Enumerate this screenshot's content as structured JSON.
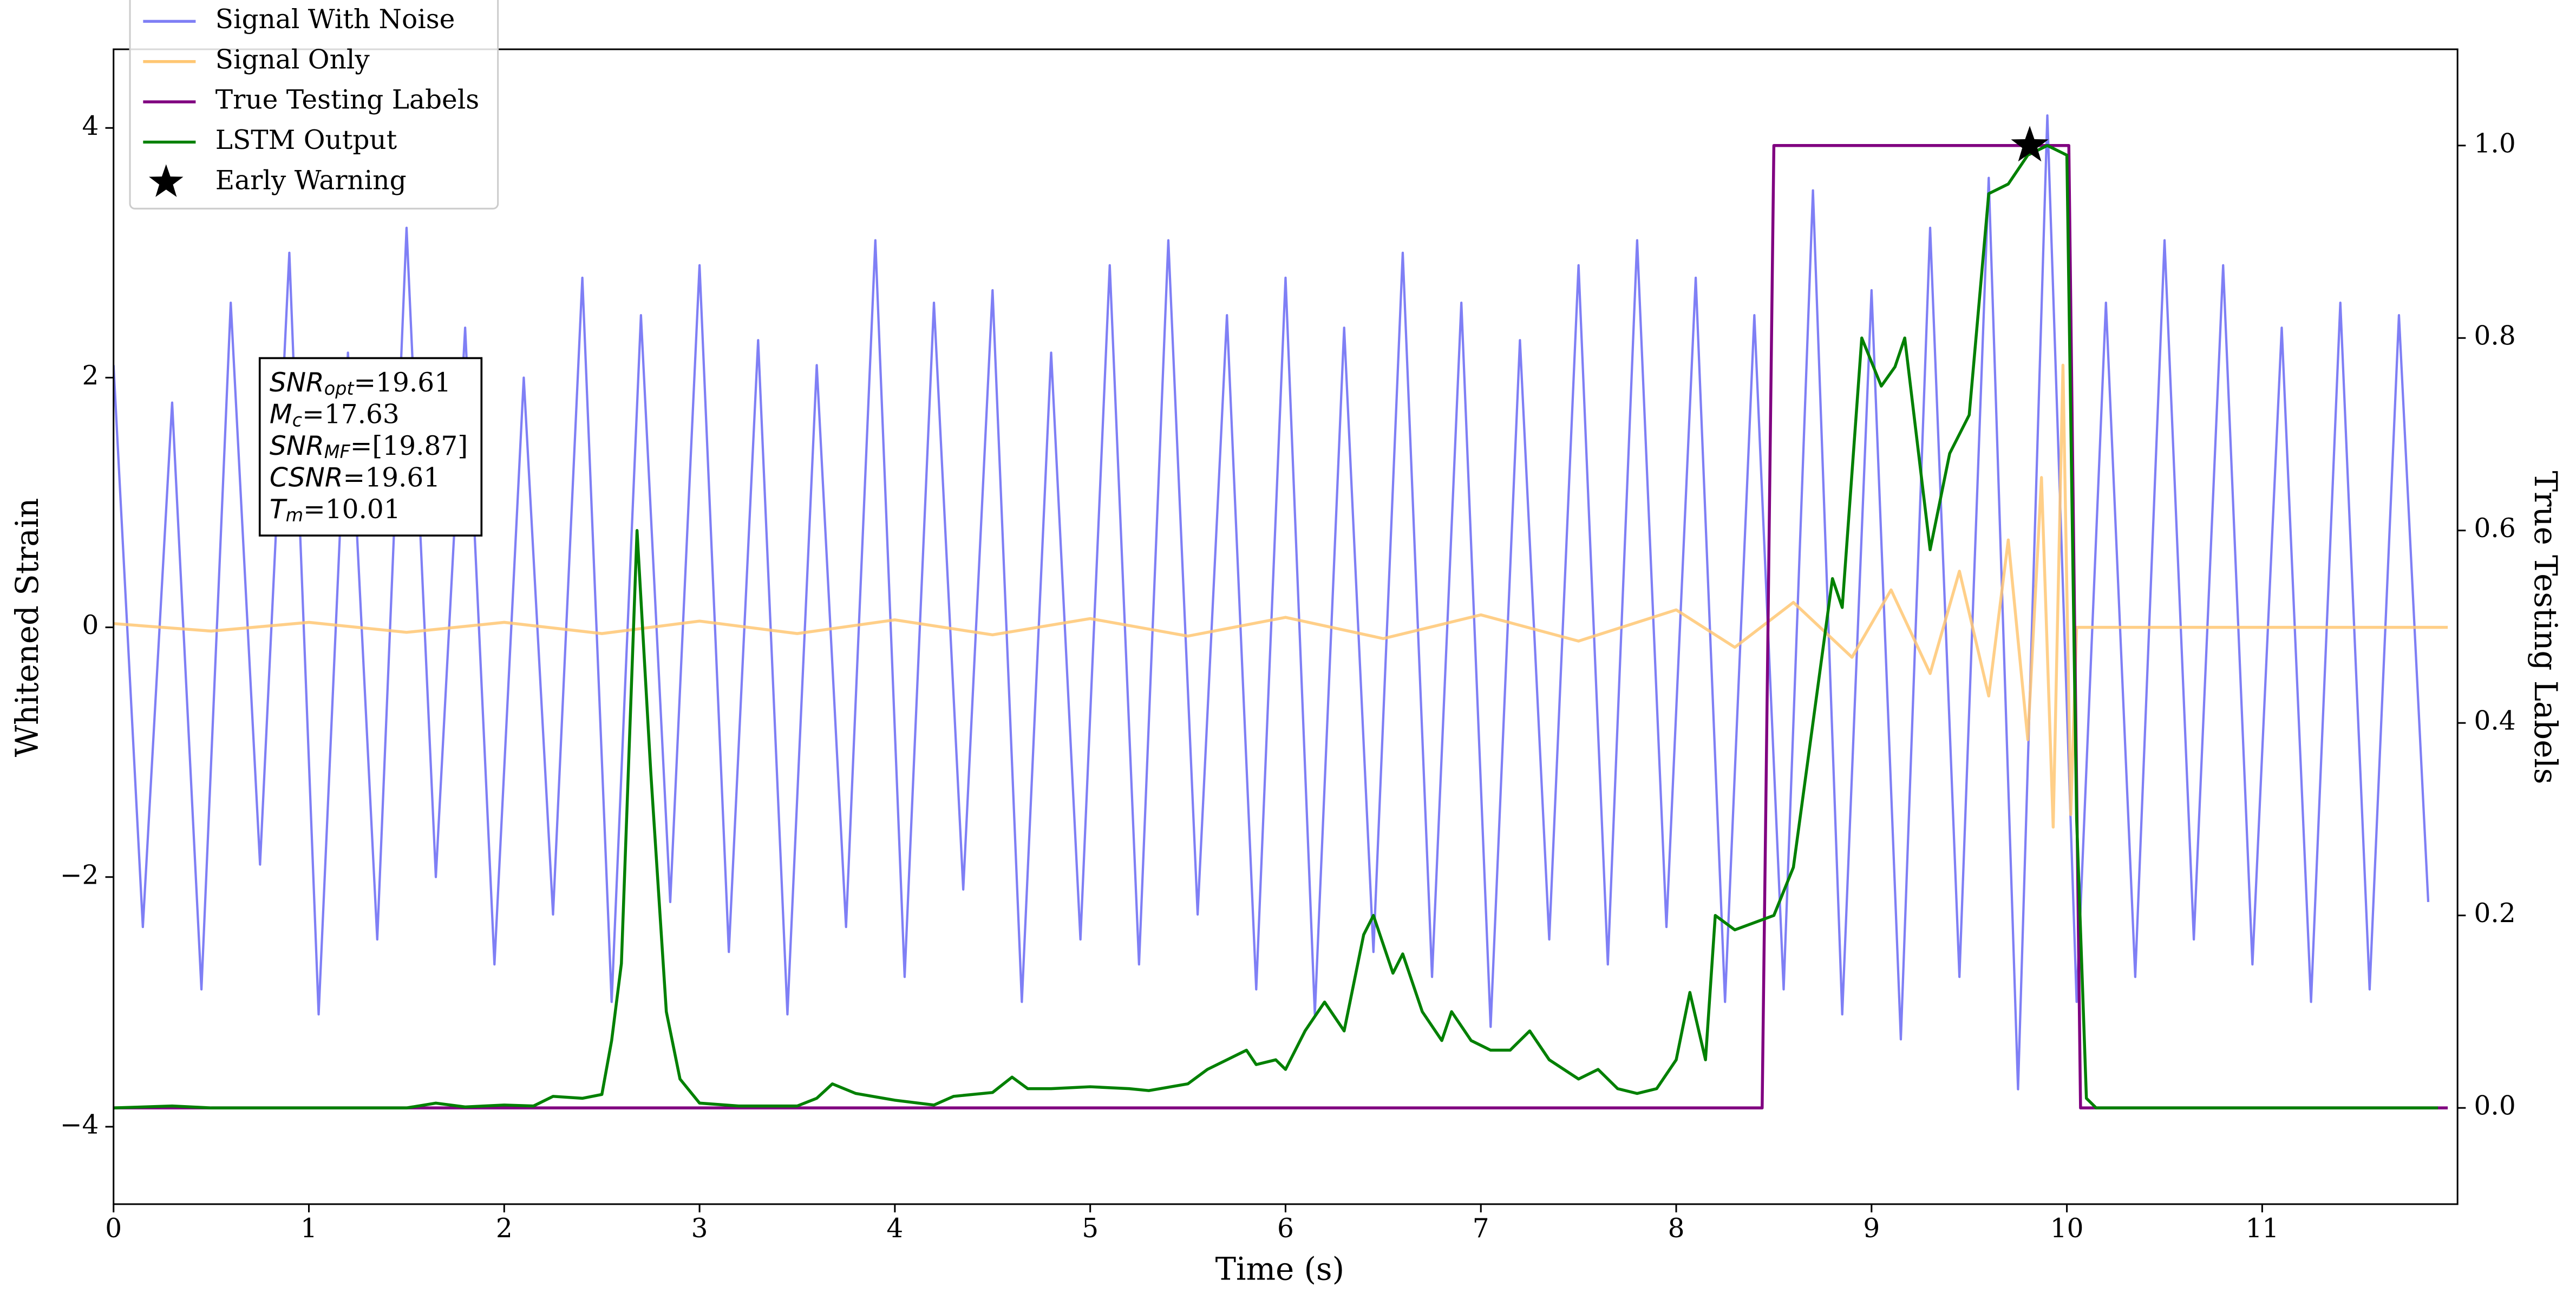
{
  "chart_data": {
    "type": "line",
    "xlabel": "Time (s)",
    "ylabel": "Whitened Strain",
    "y2label": "True Testing Labels",
    "xlim": [
      0,
      12
    ],
    "xticks": [
      0,
      1,
      2,
      3,
      4,
      5,
      6,
      7,
      8,
      9,
      10,
      11
    ],
    "ylim": [
      -4.62,
      4.63
    ],
    "yticks": [
      {
        "value": -4,
        "label": "−4"
      },
      {
        "value": -2,
        "label": "−2"
      },
      0,
      2,
      4
    ],
    "y2lim": [
      -0.1,
      1.1
    ],
    "y2ticks": [
      {
        "value": 0,
        "label": "0.0"
      },
      0.2,
      0.4,
      0.6,
      0.8,
      {
        "value": 1,
        "label": "1.0"
      }
    ],
    "legend": "upper left",
    "series": [
      {
        "name": "Signal With Noise",
        "color": "#7f7ff5",
        "axis": "y",
        "x": [
          0,
          0.15,
          0.3,
          0.45,
          0.6,
          0.75,
          0.9,
          1.05,
          1.2,
          1.35,
          1.5,
          1.65,
          1.8,
          1.95,
          2.1,
          2.25,
          2.4,
          2.55,
          2.7,
          2.85,
          3,
          3.15,
          3.3,
          3.45,
          3.6,
          3.75,
          3.9,
          4.05,
          4.2,
          4.35,
          4.5,
          4.65,
          4.8,
          4.95,
          5.1,
          5.25,
          5.4,
          5.55,
          5.7,
          5.85,
          6,
          6.15,
          6.3,
          6.45,
          6.6,
          6.75,
          6.9,
          7.05,
          7.2,
          7.35,
          7.5,
          7.65,
          7.8,
          7.95,
          8.1,
          8.25,
          8.4,
          8.55,
          8.7,
          8.85,
          9,
          9.15,
          9.3,
          9.45,
          9.6,
          9.75,
          9.9,
          10.05,
          10.2,
          10.35,
          10.5,
          10.65,
          10.8,
          10.95,
          11.1,
          11.25,
          11.4,
          11.55,
          11.7,
          11.85
        ],
        "values": [
          2.1,
          -2.4,
          1.8,
          -2.9,
          2.6,
          -1.9,
          3.0,
          -3.1,
          2.2,
          -2.5,
          3.2,
          -2.0,
          2.4,
          -2.7,
          2.0,
          -2.3,
          2.8,
          -3.0,
          2.5,
          -2.2,
          2.9,
          -2.6,
          2.3,
          -3.1,
          2.1,
          -2.4,
          3.1,
          -2.8,
          2.6,
          -2.1,
          2.7,
          -3.0,
          2.2,
          -2.5,
          2.9,
          -2.7,
          3.1,
          -2.3,
          2.5,
          -2.9,
          2.8,
          -3.1,
          2.4,
          -2.6,
          3.0,
          -2.8,
          2.6,
          -3.2,
          2.3,
          -2.5,
          2.9,
          -2.7,
          3.1,
          -2.4,
          2.8,
          -3.0,
          2.5,
          -2.9,
          3.5,
          -3.1,
          2.7,
          -3.3,
          3.2,
          -2.8,
          3.6,
          -3.7,
          4.1,
          -3.0,
          2.6,
          -2.8,
          3.1,
          -2.5,
          2.9,
          -2.7,
          2.4,
          -3.0,
          2.6,
          -2.9,
          2.5,
          -2.2
        ]
      },
      {
        "name": "Signal Only",
        "color": "#ffc773",
        "axis": "y",
        "x": [
          0,
          0.5,
          1,
          1.5,
          2,
          2.5,
          3,
          3.5,
          4,
          4.5,
          5,
          5.5,
          6,
          6.5,
          7,
          7.5,
          8,
          8.3,
          8.6,
          8.9,
          9.1,
          9.3,
          9.45,
          9.6,
          9.7,
          9.8,
          9.87,
          9.93,
          9.98,
          10.02,
          10.05,
          11.95
        ],
        "values": [
          0.03,
          -0.03,
          0.04,
          -0.04,
          0.04,
          -0.05,
          0.05,
          -0.05,
          0.06,
          -0.06,
          0.07,
          -0.07,
          0.08,
          -0.09,
          0.1,
          -0.11,
          0.14,
          -0.16,
          0.2,
          -0.24,
          0.3,
          -0.37,
          0.45,
          -0.55,
          0.7,
          -0.9,
          1.2,
          -1.6,
          2.1,
          -1.5,
          0,
          0
        ]
      },
      {
        "name": "True Testing Labels",
        "color": "#800080",
        "axis": "y2",
        "x": [
          0,
          8.44,
          8.5,
          10.01,
          10.07,
          11.95
        ],
        "values": [
          0,
          0,
          1,
          1,
          0,
          0
        ]
      },
      {
        "name": "LSTM Output",
        "color": "#008000",
        "axis": "y2",
        "x": [
          0,
          0.3,
          0.5,
          1.0,
          1.5,
          1.65,
          1.8,
          2.0,
          2.15,
          2.25,
          2.4,
          2.5,
          2.55,
          2.6,
          2.68,
          2.75,
          2.83,
          2.9,
          3.0,
          3.2,
          3.5,
          3.6,
          3.68,
          3.8,
          4.0,
          4.2,
          4.3,
          4.5,
          4.6,
          4.68,
          4.8,
          5.0,
          5.2,
          5.3,
          5.5,
          5.6,
          5.7,
          5.8,
          5.85,
          5.95,
          6.0,
          6.1,
          6.2,
          6.3,
          6.4,
          6.45,
          6.55,
          6.6,
          6.7,
          6.8,
          6.85,
          6.95,
          7.05,
          7.15,
          7.25,
          7.35,
          7.5,
          7.6,
          7.7,
          7.8,
          7.9,
          8.0,
          8.07,
          8.15,
          8.2,
          8.3,
          8.5,
          8.6,
          8.7,
          8.8,
          8.85,
          8.95,
          9.05,
          9.12,
          9.17,
          9.3,
          9.4,
          9.5,
          9.6,
          9.7,
          9.8,
          9.9,
          10.0,
          10.05,
          10.1,
          10.15,
          11.9
        ],
        "values": [
          0,
          0.002,
          0,
          0,
          0,
          0.005,
          0.001,
          0.003,
          0.002,
          0.012,
          0.01,
          0.014,
          0.07,
          0.15,
          0.6,
          0.35,
          0.1,
          0.03,
          0.005,
          0.002,
          0.002,
          0.01,
          0.025,
          0.015,
          0.008,
          0.003,
          0.012,
          0.016,
          0.032,
          0.02,
          0.02,
          0.022,
          0.02,
          0.018,
          0.025,
          0.04,
          0.05,
          0.06,
          0.045,
          0.05,
          0.04,
          0.08,
          0.11,
          0.08,
          0.18,
          0.2,
          0.14,
          0.16,
          0.1,
          0.07,
          0.1,
          0.07,
          0.06,
          0.06,
          0.08,
          0.05,
          0.03,
          0.04,
          0.02,
          0.015,
          0.02,
          0.05,
          0.12,
          0.05,
          0.2,
          0.185,
          0.2,
          0.25,
          0.4,
          0.55,
          0.52,
          0.8,
          0.75,
          0.77,
          0.8,
          0.58,
          0.68,
          0.72,
          0.95,
          0.96,
          0.99,
          1.0,
          0.99,
          0.3,
          0.01,
          0,
          0
        ]
      },
      {
        "name": "Early Warning",
        "color": "#000000",
        "axis": "y2",
        "marker": "star",
        "x": [
          9.81
        ],
        "values": [
          1.0
        ]
      }
    ],
    "annotation": [
      {
        "var": "SNR",
        "sub": "opt",
        "text": "=19.61"
      },
      {
        "var": "M",
        "sub": "c",
        "text": "=17.63"
      },
      {
        "var": "SNR",
        "sub": "MF",
        "text": "=[19.87]"
      },
      {
        "var": "CSNR",
        "sub": "",
        "text": "=19.61"
      },
      {
        "var": "T",
        "sub": "m",
        "text": "=10.01"
      }
    ]
  }
}
